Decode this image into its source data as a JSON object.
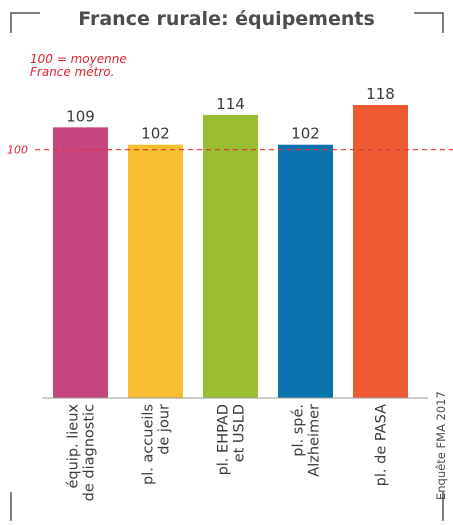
{
  "chart_data": {
    "type": "bar",
    "title": "France rurale: équipements",
    "reference_note": [
      "100 = moyenne",
      "France métro."
    ],
    "reference_value": 100,
    "reference_label": "100",
    "categories": [
      [
        "équip. lieux",
        "de diagnostic"
      ],
      [
        "pl. accueils",
        "de jour"
      ],
      [
        "pl. EHPAD",
        "et USLD"
      ],
      [
        "pl. spé.",
        "Alzheimer"
      ],
      [
        "pl. de PASA"
      ]
    ],
    "values": [
      109,
      102,
      114,
      102,
      118
    ],
    "value_labels": [
      "109",
      "102",
      "114",
      "102",
      "118"
    ],
    "colors": [
      "#c7457f",
      "#f8c030",
      "#9bbd31",
      "#0b73ad",
      "#ee5b32"
    ],
    "ylim": [
      0,
      118
    ],
    "grid": false,
    "legend": "none",
    "source": "Enquête FMA 2017"
  }
}
